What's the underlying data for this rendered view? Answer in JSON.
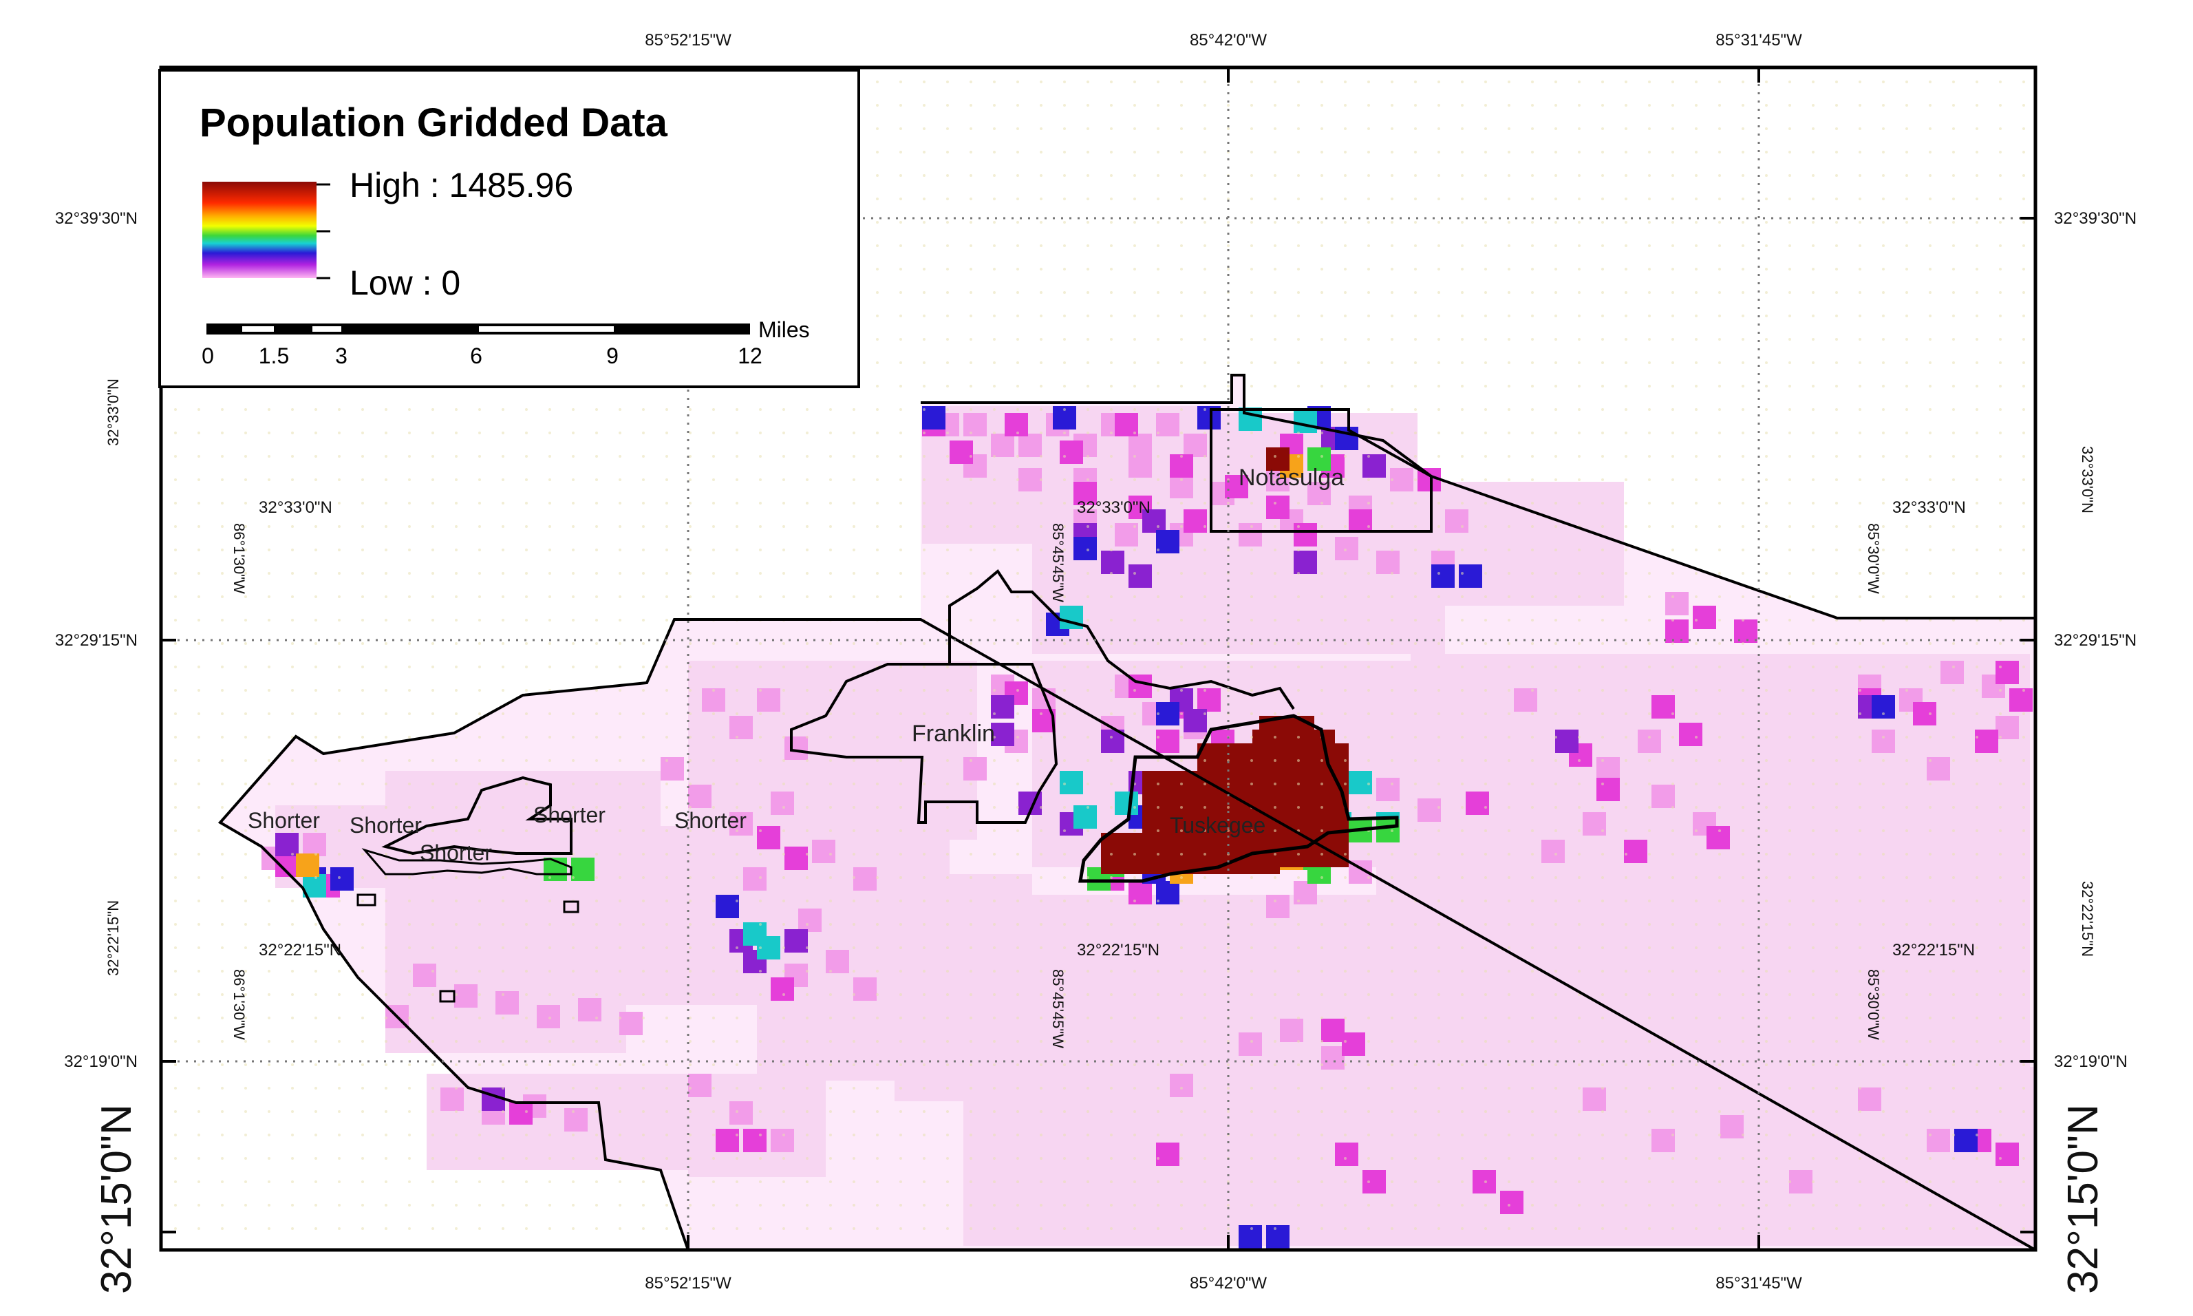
{
  "map": {
    "lon_labels": [
      "85°52'15\"W",
      "85°42'0\"W",
      "85°31'45\"W"
    ],
    "lat_labels": [
      "32°39'30\"N",
      "32°29'15\"N",
      "32°19'0\"N"
    ],
    "corner_lat_label": "32°15'0\"N",
    "inner_lat_labels": [
      "32°33'0\"N",
      "32°22'15\"N"
    ],
    "inner_lon_labels": [
      "86°1'30\"W",
      "85°45'45\"W",
      "85°30'0\"W"
    ],
    "places": {
      "notasulga": "Notasulga",
      "franklin": "Franklin",
      "tuskegee": "Tuskegee",
      "shorter_1": "Shorter",
      "shorter_2": "Shorter",
      "shorter_3": "Shorter",
      "shorter_4": "Shorter",
      "shorter_5": "Shorter"
    },
    "colors": {
      "light_pink": "#f7d6f2",
      "pink": "#f29ce9",
      "magenta": "#e53fd9",
      "violet": "#8a22d0",
      "blue": "#2a1ad6",
      "cyan": "#18c9c9",
      "green": "#37d63f",
      "orange": "#f7a31a",
      "dark_red": "#8b0a06"
    }
  },
  "legend": {
    "title": "Population Gridded Data",
    "high_label": "High : 1485.96",
    "low_label": "Low : 0",
    "scale_ticks": [
      "0",
      "1.5",
      "3",
      "6",
      "9",
      "12"
    ],
    "scale_unit": "Miles"
  }
}
